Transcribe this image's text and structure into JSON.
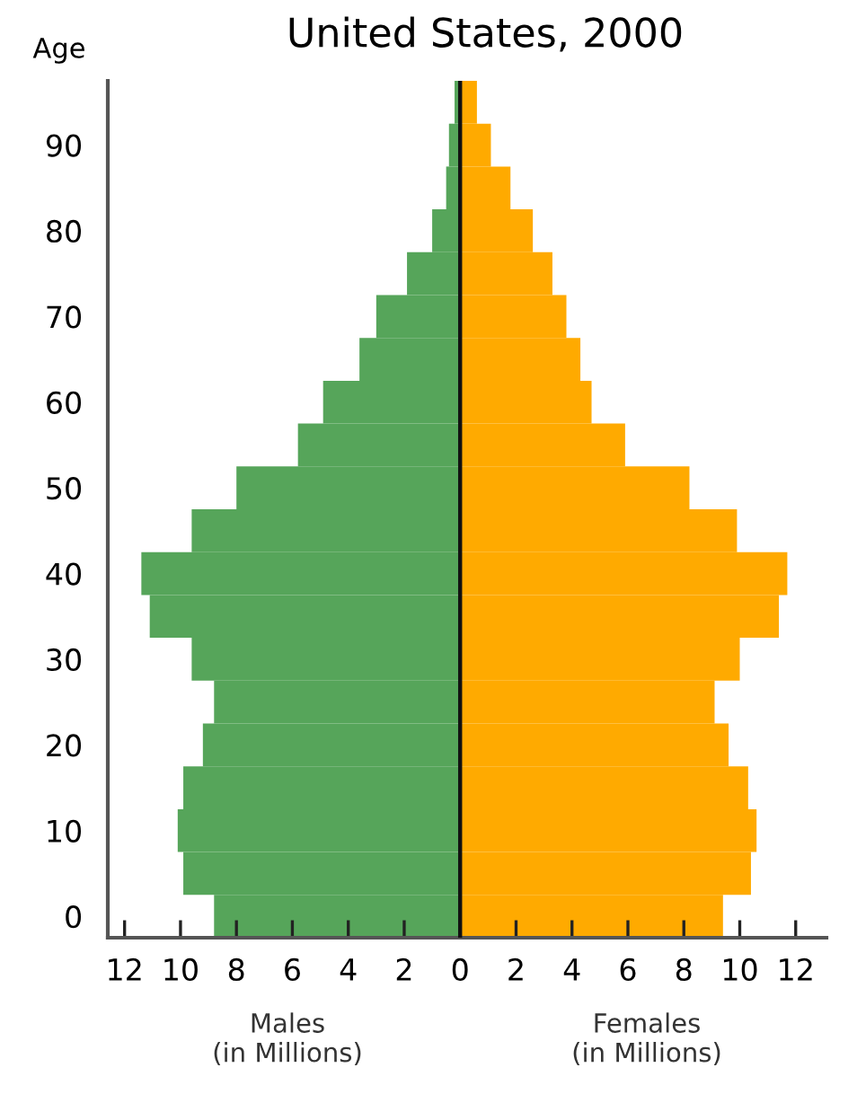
{
  "chart_data": {
    "type": "bar",
    "orientation": "horizontal",
    "stacked": true,
    "title": "United States, 2000",
    "ylabel": "Age",
    "annotations": [
      "Males\n(in Millions)",
      "Females\n(in Millions)"
    ],
    "categories": [
      null,
      "90",
      null,
      "80",
      null,
      "70",
      null,
      "60",
      null,
      "50",
      null,
      "40",
      null,
      "30",
      null,
      "20",
      null,
      "10",
      null,
      "0"
    ],
    "series": [
      {
        "color": "#56a55a",
        "values": [
          -0.2,
          -0.4,
          -0.5,
          -1.0,
          -1.9,
          -3.0,
          -3.6,
          -4.9,
          -5.8,
          -8.0,
          -9.6,
          -11.4,
          -11.1,
          -9.6,
          -8.8,
          -9.2,
          -9.9,
          -10.1,
          -9.9,
          -8.8
        ]
      },
      {
        "color": "#ffaa00",
        "values": [
          0.6,
          1.1,
          1.8,
          2.6,
          3.3,
          3.8,
          4.3,
          4.7,
          5.9,
          8.2,
          9.9,
          11.7,
          11.4,
          10.0,
          9.1,
          9.6,
          10.3,
          10.6,
          10.4,
          9.4
        ]
      }
    ],
    "xlim": [
      -12.6,
      13.1
    ],
    "xticks": [
      {
        "value": -12,
        "label": "12"
      },
      {
        "value": -10,
        "label": "10"
      },
      {
        "value": -8,
        "label": "8"
      },
      {
        "value": -6,
        "label": "6"
      },
      {
        "value": -4,
        "label": "4"
      },
      {
        "value": -2,
        "label": "2"
      },
      0,
      2,
      4,
      6,
      8,
      10,
      12
    ],
    "ref_lines": [
      {
        "axis": "x",
        "value": 0,
        "color": "#111111"
      }
    ],
    "grid": false,
    "legend": false
  }
}
